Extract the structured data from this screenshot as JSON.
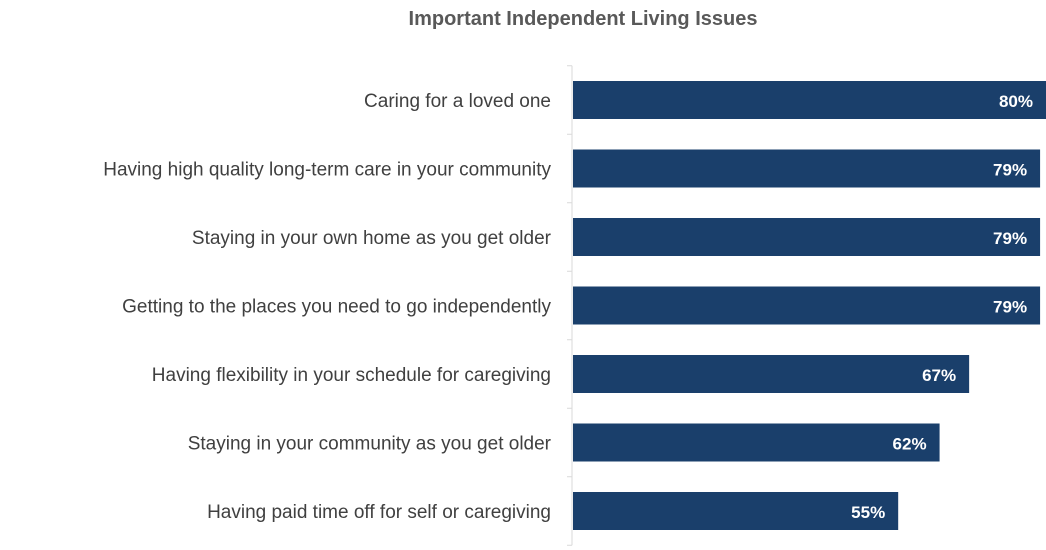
{
  "chart_data": {
    "type": "bar",
    "orientation": "horizontal",
    "title": "Important Independent Living Issues",
    "categories": [
      "Caring for a loved one",
      "Having high quality long-term care in your community",
      "Staying in your own home as you get older",
      "Getting to the places you need to go independently",
      "Having flexibility in your schedule for caregiving",
      "Staying in your community as you get older",
      "Having paid time off for self or caregiving"
    ],
    "values": [
      80,
      79,
      79,
      79,
      67,
      62,
      55
    ],
    "value_labels": [
      "80%",
      "79%",
      "79%",
      "79%",
      "67%",
      "62%",
      "55%"
    ],
    "xlim": [
      0,
      80
    ],
    "grid": false,
    "legend": "none",
    "colors": {
      "bar": "#1a3f6b",
      "axis": "#d9d9d9",
      "label": "#404040",
      "title": "#595959",
      "value_text": "#ffffff"
    }
  }
}
